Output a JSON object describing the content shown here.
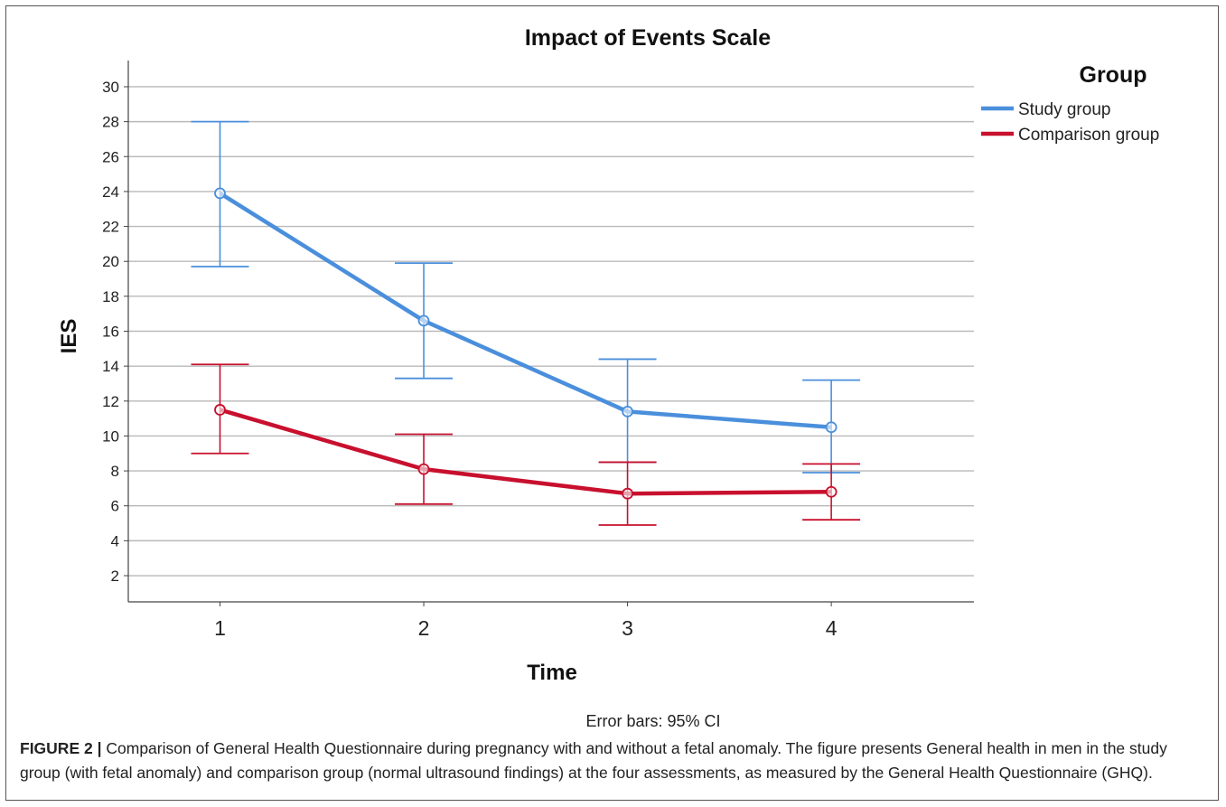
{
  "chart_data": {
    "type": "line",
    "title": "Impact of Events Scale",
    "xlabel": "Time",
    "ylabel": "IES",
    "x": [
      1,
      2,
      3,
      4
    ],
    "x_tick_labels": [
      "1",
      "2",
      "3",
      "4"
    ],
    "y_ticks": [
      2,
      4,
      6,
      8,
      10,
      12,
      14,
      16,
      18,
      20,
      22,
      24,
      26,
      28,
      30
    ],
    "ylim": [
      0.5,
      31.5
    ],
    "xlim": [
      0.55,
      4.7
    ],
    "grid": "horizontal",
    "legend_title": "Group",
    "legend_position": "top-right",
    "error_bar_note": "Error bars: 95% CI",
    "series": [
      {
        "name": "Study group",
        "color": "#4a8fdc",
        "values": [
          23.9,
          16.6,
          11.4,
          10.5
        ],
        "ci_low": [
          19.7,
          13.3,
          8.5,
          7.9
        ],
        "ci_high": [
          28.0,
          19.9,
          14.4,
          13.2
        ]
      },
      {
        "name": "Comparison group",
        "color": "#c8102e",
        "values": [
          11.5,
          8.1,
          6.7,
          6.8
        ],
        "ci_low": [
          9.0,
          6.1,
          4.9,
          5.2
        ],
        "ci_high": [
          14.1,
          10.1,
          8.5,
          8.4
        ]
      }
    ]
  },
  "caption": {
    "label": "FIGURE 2",
    "separator": "|",
    "text": "Comparison of General Health Questionnaire during pregnancy with and without a fetal anomaly. The figure presents General health in men in the study group (with fetal anomaly) and comparison group (normal ultrasound findings) at the four assessments, as measured by the General Health Questionnaire (GHQ)."
  }
}
